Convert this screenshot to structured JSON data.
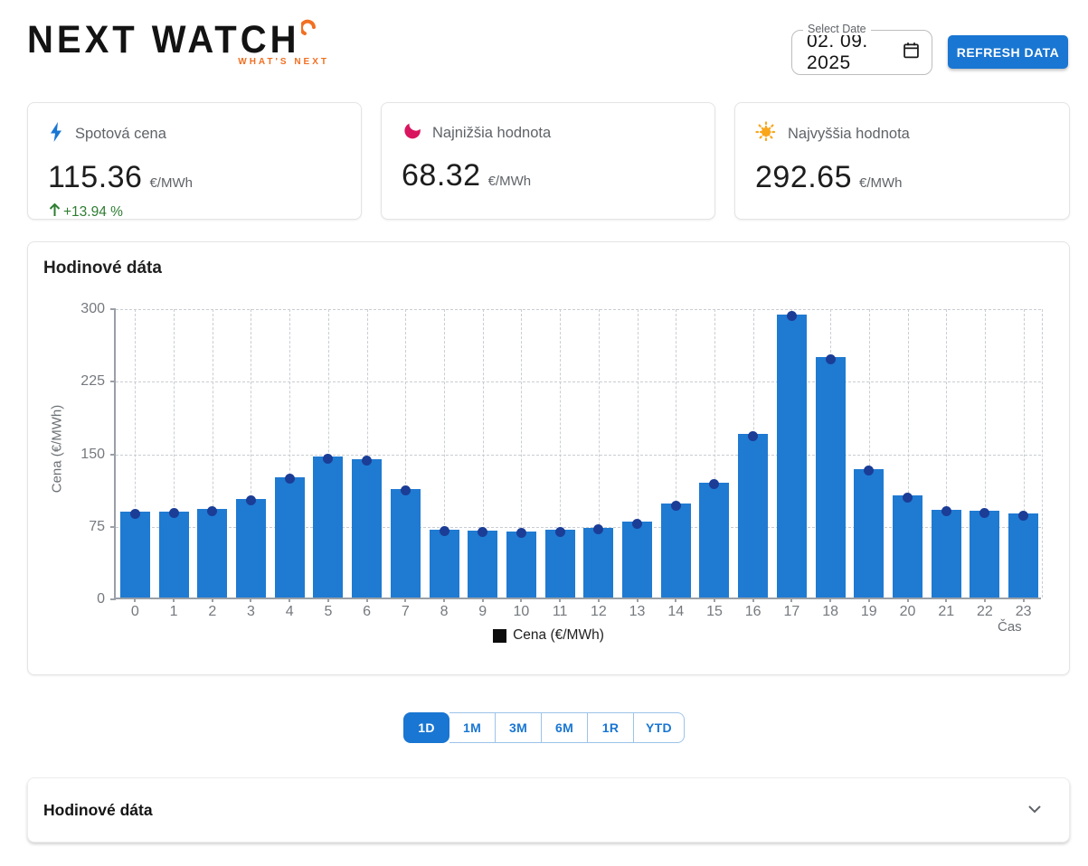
{
  "header": {
    "logo_text": "NEXT WATCH",
    "logo_tagline": "WHAT'S NEXT",
    "date_picker": {
      "label": "Select Date",
      "value": "02. 09. 2025"
    },
    "refresh_label": "REFRESH DATA"
  },
  "colors": {
    "primary": "#1976d2",
    "bar": "#1f7ad2",
    "dot": "#1b3d96",
    "positive": "#2e7d32",
    "logo_accent": "#f26f21",
    "min_icon": "#d9155f",
    "max_icon": "#f9a61a"
  },
  "stats": {
    "spot": {
      "icon": "bolt-icon",
      "title": "Spotová cena",
      "value": "115.36",
      "unit": "€/MWh",
      "change": "+13.94 %"
    },
    "min": {
      "icon": "moon-icon",
      "title": "Najnižšia hodnota",
      "value": "68.32",
      "unit": "€/MWh"
    },
    "max": {
      "icon": "sun-icon",
      "title": "Najvyššia hodnota",
      "value": "292.65",
      "unit": "€/MWh"
    }
  },
  "chart_card": {
    "title": "Hodinové dáta"
  },
  "chart_data": {
    "type": "bar",
    "title": "Hodinové dáta",
    "categories": [
      "0",
      "1",
      "2",
      "3",
      "4",
      "5",
      "6",
      "7",
      "8",
      "9",
      "10",
      "11",
      "12",
      "13",
      "14",
      "15",
      "16",
      "17",
      "18",
      "19",
      "20",
      "21",
      "22",
      "23"
    ],
    "values": [
      88.45,
      89.2,
      91.4,
      102.1,
      124.3,
      145.6,
      143.2,
      112.4,
      70.1,
      69.3,
      68.32,
      69.8,
      72.0,
      78.4,
      96.9,
      118.8,
      168.9,
      292.65,
      248.3,
      133.0,
      105.4,
      90.8,
      89.3,
      86.5
    ],
    "series_name": "Cena (€/MWh)",
    "xlabel": "Čas",
    "ylabel": "Cena (€/MWh)",
    "ylim": [
      0,
      300
    ],
    "yticks": [
      0,
      75,
      150,
      225,
      300
    ],
    "legend": "Cena (€/MWh)",
    "legend_position": "bottom-center",
    "grid": "dashed"
  },
  "range_buttons": [
    {
      "label": "1D",
      "active": true
    },
    {
      "label": "1M",
      "active": false
    },
    {
      "label": "3M",
      "active": false
    },
    {
      "label": "6M",
      "active": false
    },
    {
      "label": "1R",
      "active": false
    },
    {
      "label": "YTD",
      "active": false
    }
  ],
  "accordion": {
    "title": "Hodinové dáta"
  }
}
